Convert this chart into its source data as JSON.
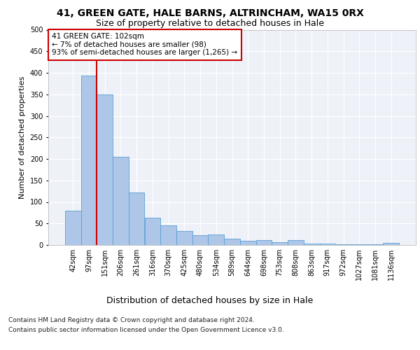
{
  "title1": "41, GREEN GATE, HALE BARNS, ALTRINCHAM, WA15 0RX",
  "title2": "Size of property relative to detached houses in Hale",
  "xlabel": "Distribution of detached houses by size in Hale",
  "ylabel": "Number of detached properties",
  "footer1": "Contains HM Land Registry data © Crown copyright and database right 2024.",
  "footer2": "Contains public sector information licensed under the Open Government Licence v3.0.",
  "annotation_title": "41 GREEN GATE: 102sqm",
  "annotation_line1": "← 7% of detached houses are smaller (98)",
  "annotation_line2": "93% of semi-detached houses are larger (1,265) →",
  "bar_labels": [
    "42sqm",
    "97sqm",
    "151sqm",
    "206sqm",
    "261sqm",
    "316sqm",
    "370sqm",
    "425sqm",
    "480sqm",
    "534sqm",
    "589sqm",
    "644sqm",
    "698sqm",
    "753sqm",
    "808sqm",
    "863sqm",
    "917sqm",
    "972sqm",
    "1027sqm",
    "1081sqm",
    "1136sqm"
  ],
  "bar_values": [
    80,
    393,
    350,
    205,
    122,
    64,
    45,
    33,
    22,
    24,
    14,
    9,
    11,
    6,
    11,
    4,
    4,
    2,
    2,
    2,
    5
  ],
  "bar_color": "#aec6e8",
  "bar_edge_color": "#5a9fd4",
  "vline_color": "#cc0000",
  "vline_x": 1.5,
  "ylim": [
    0,
    500
  ],
  "yticks": [
    0,
    50,
    100,
    150,
    200,
    250,
    300,
    350,
    400,
    450,
    500
  ],
  "bg_color": "#eef2f8",
  "annotation_box_color": "#ffffff",
  "annotation_box_edge": "#cc0000",
  "title1_fontsize": 10,
  "title2_fontsize": 9,
  "xlabel_fontsize": 9,
  "ylabel_fontsize": 8,
  "tick_fontsize": 7,
  "footer_fontsize": 6.5,
  "annotation_fontsize": 7.5
}
